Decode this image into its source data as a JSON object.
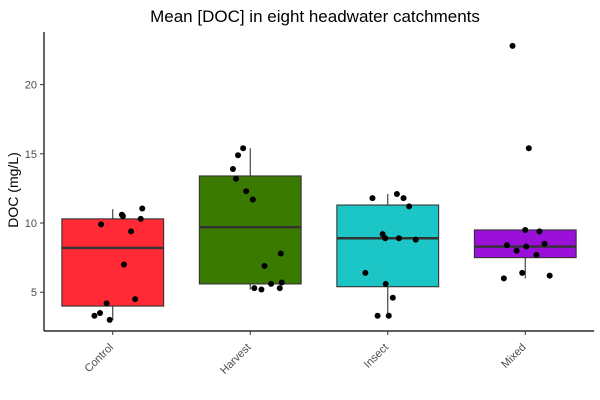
{
  "chart_data": {
    "type": "box",
    "title": "Mean [DOC] in eight headwater catchments",
    "xlabel": "",
    "ylabel": "DOC (mg/L)",
    "ylim": [
      2.2,
      23.8
    ],
    "yticks": [
      5,
      10,
      15,
      20
    ],
    "grid": false,
    "legend": "none",
    "categories": [
      "Control",
      "Harvest",
      "Insect",
      "Mixed"
    ],
    "colors": [
      "#ff2a35",
      "#3b7a00",
      "#1cc6c6",
      "#9b10d8"
    ],
    "boxes": [
      {
        "category": "Control",
        "whisker_low": 3.0,
        "q1": 4.0,
        "median": 8.2,
        "q3": 10.3,
        "whisker_high": 11.0
      },
      {
        "category": "Harvest",
        "whisker_low": 5.2,
        "q1": 5.6,
        "median": 9.7,
        "q3": 13.4,
        "whisker_high": 15.4
      },
      {
        "category": "Insect",
        "whisker_low": 3.3,
        "q1": 5.4,
        "median": 8.9,
        "q3": 11.3,
        "whisker_high": 12.1
      },
      {
        "category": "Mixed",
        "whisker_low": 6.0,
        "q1": 7.5,
        "median": 8.3,
        "q3": 9.5,
        "whisker_high": 9.6
      }
    ],
    "points": [
      {
        "category": "Control",
        "jitter": [
          -0.36,
          -0.25,
          -0.23,
          -0.12,
          -0.06,
          0.18,
          0.2,
          0.22,
          0.36,
          0.44,
          0.55,
          0.58
        ],
        "y": [
          3.3,
          3.5,
          9.9,
          4.2,
          3.0,
          10.6,
          10.5,
          7.0,
          9.4,
          4.5,
          10.3,
          11.05
        ]
      },
      {
        "category": "Harvest",
        "jitter": [
          -0.34,
          -0.28,
          -0.24,
          -0.14,
          -0.08,
          0.05,
          0.08,
          0.22,
          0.28,
          0.41,
          0.58,
          0.6,
          0.62
        ],
        "y": [
          13.9,
          13.2,
          14.9,
          15.4,
          12.3,
          11.7,
          5.3,
          5.2,
          6.9,
          5.6,
          5.3,
          7.8,
          5.7
        ]
      },
      {
        "category": "Insect",
        "jitter": [
          -0.44,
          -0.3,
          -0.2,
          -0.1,
          -0.05,
          -0.04,
          0.02,
          0.1,
          0.18,
          0.22,
          0.31,
          0.42,
          0.55
        ],
        "y": [
          6.4,
          11.8,
          3.3,
          9.2,
          8.9,
          5.6,
          3.3,
          4.6,
          12.1,
          8.9,
          11.8,
          11.2,
          8.8
        ]
      },
      {
        "category": "Mixed",
        "jitter": [
          -0.42,
          -0.36,
          -0.25,
          -0.17,
          -0.06,
          0.0,
          0.02,
          0.07,
          0.22,
          0.28,
          0.38,
          0.48
        ],
        "y": [
          6.0,
          8.4,
          22.8,
          8.0,
          6.4,
          9.5,
          8.3,
          15.4,
          7.7,
          9.4,
          8.5,
          6.2
        ]
      }
    ]
  }
}
